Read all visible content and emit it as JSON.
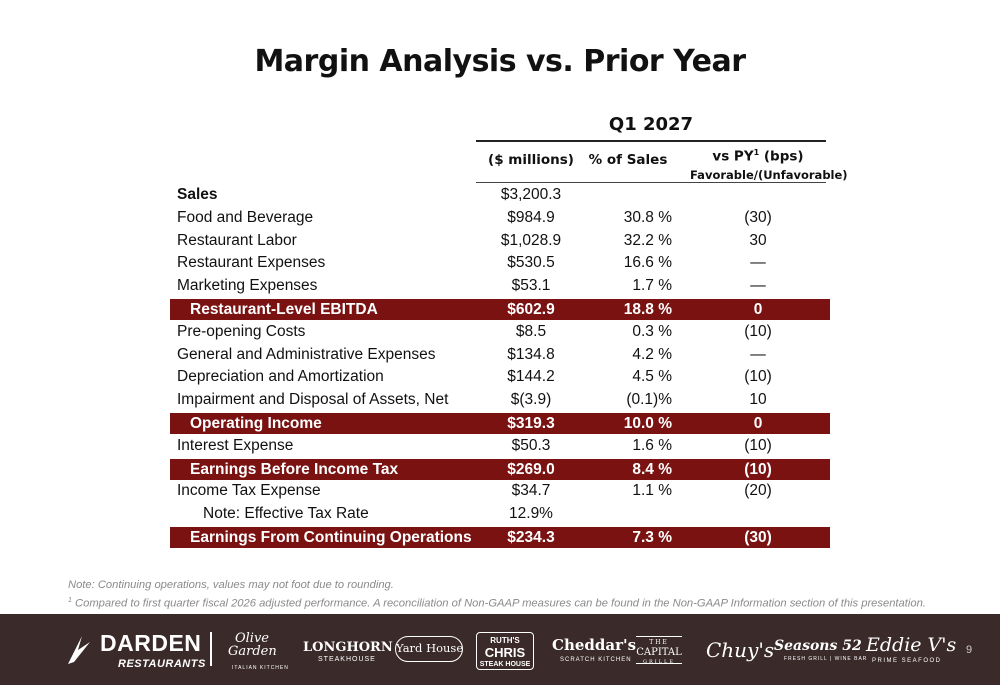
{
  "title": "Margin Analysis vs. Prior Year",
  "table": {
    "period": "Q1 2027",
    "headers": {
      "amount": "($ millions)",
      "pct": "% of Sales",
      "bps_main": "vs PY",
      "bps_sup": "1",
      "bps_unit": " (bps)",
      "bps_sub": "Favorable/(Unfavorable)"
    },
    "rows": [
      {
        "label": "Sales",
        "amount": "$3,200.3",
        "pct": "",
        "bps": ""
      },
      {
        "label": "Food and Beverage",
        "amount": "$984.9",
        "pct": "30.8 %",
        "bps": "(30)"
      },
      {
        "label": "Restaurant Labor",
        "amount": "$1,028.9",
        "pct": "32.2 %",
        "bps": "30"
      },
      {
        "label": "Restaurant Expenses",
        "amount": "$530.5",
        "pct": "16.6 %",
        "bps": "—"
      },
      {
        "label": "Marketing Expenses",
        "amount": "$53.1",
        "pct": "1.7 %",
        "bps": "—"
      },
      {
        "label": "Restaurant-Level EBITDA",
        "amount": "$602.9",
        "pct": "18.8 %",
        "bps": "0"
      },
      {
        "label": "Pre-opening Costs",
        "amount": "$8.5",
        "pct": "0.3 %",
        "bps": "(10)"
      },
      {
        "label": "General and Administrative Expenses",
        "amount": "$134.8",
        "pct": "4.2 %",
        "bps": "—"
      },
      {
        "label": "Depreciation and Amortization",
        "amount": "$144.2",
        "pct": "4.5 %",
        "bps": "(10)"
      },
      {
        "label": "Impairment and Disposal of Assets, Net",
        "amount": "$(3.9)",
        "pct": "(0.1)%",
        "bps": "10"
      },
      {
        "label": "Operating Income",
        "amount": "$319.3",
        "pct": "10.0 %",
        "bps": "0"
      },
      {
        "label": "Interest Expense",
        "amount": "$50.3",
        "pct": "1.6 %",
        "bps": "(10)"
      },
      {
        "label": "Earnings Before Income Tax",
        "amount": "$269.0",
        "pct": "8.4 %",
        "bps": "(10)"
      },
      {
        "label": "Income Tax Expense",
        "amount": "$34.7",
        "pct": "1.1 %",
        "bps": "(20)"
      },
      {
        "label": "Note: Effective Tax Rate",
        "amount": "12.9%",
        "pct": "",
        "bps": ""
      },
      {
        "label": "Earnings From Continuing Operations",
        "amount": "$234.3",
        "pct": "7.3 %",
        "bps": "(30)"
      }
    ]
  },
  "notes": {
    "line1": "Note: Continuing operations, values may not foot due to rounding.",
    "line2_sup": "1",
    "line2": " Compared to first quarter fiscal 2026 adjusted performance. A reconciliation of Non-GAAP measures can be found in the Non-GAAP Information section of this presentation."
  },
  "footer": {
    "darden": {
      "name": "DARDEN",
      "sub": "RESTAURANTS"
    },
    "olive_garden": {
      "line1": "Olive",
      "line2": "Garden",
      "sub": "ITALIAN KITCHEN"
    },
    "longhorn": {
      "name": "LONGHORN",
      "sub": "STEAKHOUSE"
    },
    "yard_house": "Yard House",
    "ruths": {
      "l1": "RUTH'S",
      "l2": "CHRIS",
      "l3": "STEAK HOUSE"
    },
    "cheddars": {
      "name": "Cheddar's",
      "sub": "SCRATCH KITCHEN"
    },
    "capital_grille": {
      "l1": "THE",
      "l2": "CAPITAL",
      "l3": "GRILLE"
    },
    "chuys": "Chuy's",
    "seasons52": {
      "name": "Seasons 52",
      "sub": "FRESH GRILL | WINE BAR"
    },
    "eddie_v": {
      "name": "Eddie V's",
      "sub": "PRIME SEAFOOD"
    },
    "page_number": "9"
  },
  "colors": {
    "highlight": "#7a1212",
    "footer": "#3b2a2a"
  }
}
